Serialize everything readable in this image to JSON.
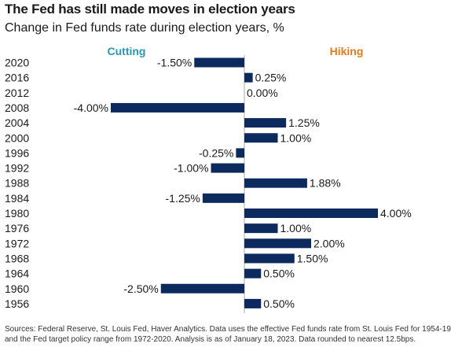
{
  "title": "The Fed has still made moves in election years",
  "subtitle": "Change in Fed funds rate during election years, %",
  "source": [
    "Sources: Federal Reserve, St. Louis Fed, Haver Analytics. Data uses the effective Fed funds rate from St. Louis Fed for 1954-19",
    "and the Fed target policy range from 1972-2020. Analysis is as of January 18, 2023. Data rounded to nearest 12.5bps."
  ],
  "colors": {
    "bar": "#0d2a5e",
    "cutting": "#2a97b0",
    "hiking": "#e07b1a",
    "axis": "#aaaaaa"
  },
  "chart_data": {
    "type": "bar",
    "orientation": "horizontal",
    "categories": [
      "2020",
      "2016",
      "2012",
      "2008",
      "2004",
      "2000",
      "1996",
      "1992",
      "1988",
      "1984",
      "1980",
      "1976",
      "1972",
      "1968",
      "1964",
      "1960",
      "1956"
    ],
    "values": [
      -1.5,
      0.25,
      0.0,
      -4.0,
      1.25,
      1.0,
      -0.25,
      -1.0,
      1.88,
      -1.25,
      4.0,
      1.0,
      2.0,
      1.5,
      0.5,
      -2.5,
      0.5
    ],
    "value_labels": [
      "-1.50%",
      "0.25%",
      "0.00%",
      "-4.00%",
      "1.25%",
      "1.00%",
      "-0.25%",
      "-1.00%",
      "1.88%",
      "-1.25%",
      "4.00%",
      "1.00%",
      "2.00%",
      "1.50%",
      "0.50%",
      "-2.50%",
      "0.50%"
    ],
    "xlim": [
      -4.0,
      4.0
    ],
    "headings": {
      "negative": "Cutting",
      "positive": "Hiking"
    },
    "grid": false,
    "legend": "none"
  }
}
